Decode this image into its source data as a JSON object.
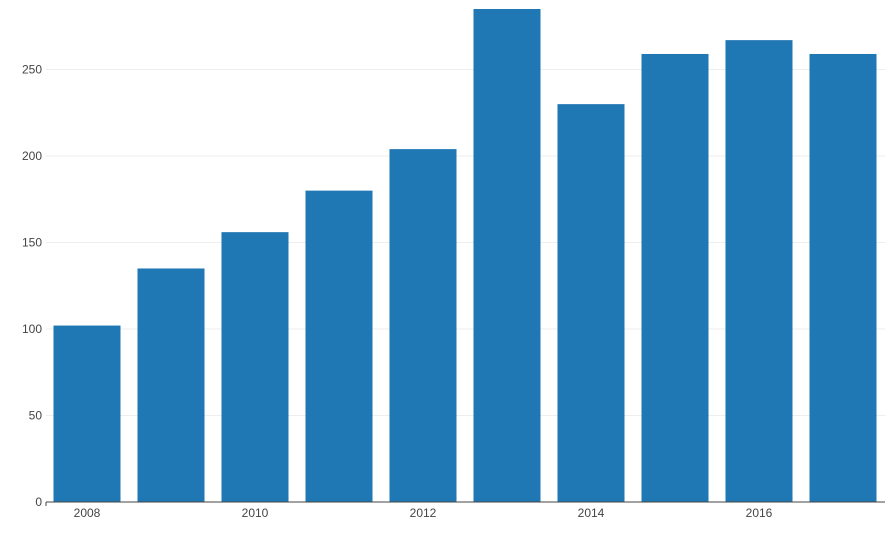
{
  "chart_data": {
    "type": "bar",
    "x": [
      2008,
      2009,
      2010,
      2011,
      2012,
      2013,
      2014,
      2015,
      2016,
      2017
    ],
    "values": [
      102,
      135,
      156,
      180,
      204,
      285,
      230,
      259,
      267,
      259
    ],
    "x_tick_labels": [
      "2008",
      "2010",
      "2012",
      "2014",
      "2016"
    ],
    "y_ticks": [
      0,
      50,
      100,
      150,
      200,
      250
    ],
    "y_tick_labels": [
      "0",
      "50",
      "100",
      "150",
      "200",
      "250"
    ],
    "ylim": [
      0,
      285
    ],
    "title": "",
    "xlabel": "",
    "ylabel": "",
    "grid": true,
    "bar_color": "#1f77b4",
    "grid_color": "#eeeeee",
    "axis_color": "#444444"
  }
}
